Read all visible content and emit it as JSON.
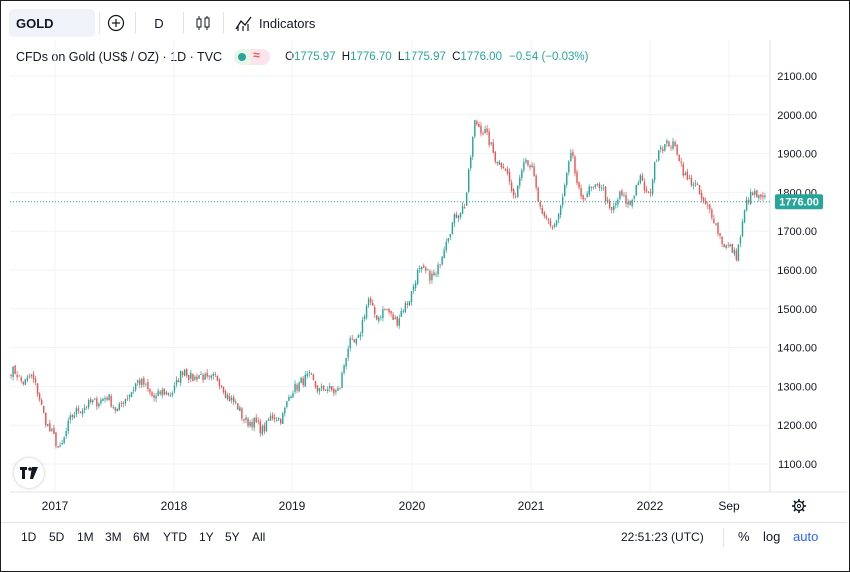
{
  "toolbar": {
    "symbol": "GOLD",
    "interval": "D",
    "indicators_label": "Indicators"
  },
  "legend": {
    "title": "CFDs on Gold (US$ / OZ) · 1D · TVC",
    "open_key": "O",
    "open": "1775.97",
    "high_key": "H",
    "high": "1776.70",
    "low_key": "L",
    "low": "1775.97",
    "close_key": "C",
    "close": "1776.00",
    "change": "−0.54 (−0.03%)"
  },
  "chart_data": {
    "type": "candlestick",
    "price_ticks": [
      "2100.00",
      "2000.00",
      "1900.00",
      "1800.00",
      "1700.00",
      "1600.00",
      "1500.00",
      "1400.00",
      "1300.00",
      "1200.00",
      "1100.00"
    ],
    "time_ticks": [
      "2017",
      "2018",
      "2019",
      "2020",
      "2021",
      "2022",
      "Sep"
    ],
    "last_price_label": "1776.00",
    "last_price": 1776.0,
    "ylim": [
      1060,
      2130
    ],
    "up_color": "#26a69a",
    "down_color": "#ef5350",
    "series": [
      {
        "t": "2016-07",
        "v": 1340
      },
      {
        "t": "2016-08",
        "v": 1315
      },
      {
        "t": "2016-09",
        "v": 1325
      },
      {
        "t": "2016-10",
        "v": 1270
      },
      {
        "t": "2016-11",
        "v": 1180
      },
      {
        "t": "2016-12",
        "v": 1140
      },
      {
        "t": "2017-01",
        "v": 1200
      },
      {
        "t": "2017-02",
        "v": 1250
      },
      {
        "t": "2017-03",
        "v": 1245
      },
      {
        "t": "2017-04",
        "v": 1270
      },
      {
        "t": "2017-05",
        "v": 1265
      },
      {
        "t": "2017-06",
        "v": 1245
      },
      {
        "t": "2017-07",
        "v": 1265
      },
      {
        "t": "2017-08",
        "v": 1320
      },
      {
        "t": "2017-09",
        "v": 1290
      },
      {
        "t": "2017-10",
        "v": 1275
      },
      {
        "t": "2017-11",
        "v": 1280
      },
      {
        "t": "2017-12",
        "v": 1300
      },
      {
        "t": "2018-01",
        "v": 1345
      },
      {
        "t": "2018-02",
        "v": 1320
      },
      {
        "t": "2018-03",
        "v": 1325
      },
      {
        "t": "2018-04",
        "v": 1320
      },
      {
        "t": "2018-05",
        "v": 1300
      },
      {
        "t": "2018-06",
        "v": 1255
      },
      {
        "t": "2018-07",
        "v": 1225
      },
      {
        "t": "2018-08",
        "v": 1200
      },
      {
        "t": "2018-09",
        "v": 1195
      },
      {
        "t": "2018-10",
        "v": 1215
      },
      {
        "t": "2018-11",
        "v": 1225
      },
      {
        "t": "2018-12",
        "v": 1280
      },
      {
        "t": "2019-01",
        "v": 1320
      },
      {
        "t": "2019-02",
        "v": 1315
      },
      {
        "t": "2019-03",
        "v": 1295
      },
      {
        "t": "2019-04",
        "v": 1285
      },
      {
        "t": "2019-05",
        "v": 1300
      },
      {
        "t": "2019-06",
        "v": 1410
      },
      {
        "t": "2019-07",
        "v": 1425
      },
      {
        "t": "2019-08",
        "v": 1525
      },
      {
        "t": "2019-09",
        "v": 1475
      },
      {
        "t": "2019-10",
        "v": 1500
      },
      {
        "t": "2019-11",
        "v": 1465
      },
      {
        "t": "2019-12",
        "v": 1520
      },
      {
        "t": "2020-01",
        "v": 1585
      },
      {
        "t": "2020-02",
        "v": 1600
      },
      {
        "t": "2020-03",
        "v": 1575
      },
      {
        "t": "2020-04",
        "v": 1690
      },
      {
        "t": "2020-05",
        "v": 1730
      },
      {
        "t": "2020-06",
        "v": 1780
      },
      {
        "t": "2020-07",
        "v": 1975
      },
      {
        "t": "2020-08",
        "v": 1965
      },
      {
        "t": "2020-09",
        "v": 1885
      },
      {
        "t": "2020-10",
        "v": 1880
      },
      {
        "t": "2020-11",
        "v": 1775
      },
      {
        "t": "2020-12",
        "v": 1895
      },
      {
        "t": "2021-01",
        "v": 1850
      },
      {
        "t": "2021-02",
        "v": 1730
      },
      {
        "t": "2021-03",
        "v": 1710
      },
      {
        "t": "2021-04",
        "v": 1770
      },
      {
        "t": "2021-05",
        "v": 1905
      },
      {
        "t": "2021-06",
        "v": 1770
      },
      {
        "t": "2021-07",
        "v": 1815
      },
      {
        "t": "2021-08",
        "v": 1815
      },
      {
        "t": "2021-09",
        "v": 1755
      },
      {
        "t": "2021-10",
        "v": 1785
      },
      {
        "t": "2021-11",
        "v": 1775
      },
      {
        "t": "2021-12",
        "v": 1830
      },
      {
        "t": "2022-01",
        "v": 1795
      },
      {
        "t": "2022-02",
        "v": 1910
      },
      {
        "t": "2022-03",
        "v": 1935
      },
      {
        "t": "2022-04",
        "v": 1895
      },
      {
        "t": "2022-05",
        "v": 1835
      },
      {
        "t": "2022-06",
        "v": 1805
      },
      {
        "t": "2022-07",
        "v": 1765
      },
      {
        "t": "2022-08",
        "v": 1710
      },
      {
        "t": "2022-09",
        "v": 1660
      },
      {
        "t": "2022-10",
        "v": 1635
      },
      {
        "t": "2022-11",
        "v": 1765
      },
      {
        "t": "2022-12",
        "v": 1800
      },
      {
        "t": "2023-01",
        "v": 1776
      }
    ]
  },
  "bottom": {
    "ranges": [
      "1D",
      "5D",
      "1M",
      "3M",
      "6M",
      "YTD",
      "1Y",
      "5Y",
      "All"
    ],
    "clock": "22:51:23 (UTC)",
    "percent": "%",
    "log": "log",
    "auto": "auto"
  }
}
